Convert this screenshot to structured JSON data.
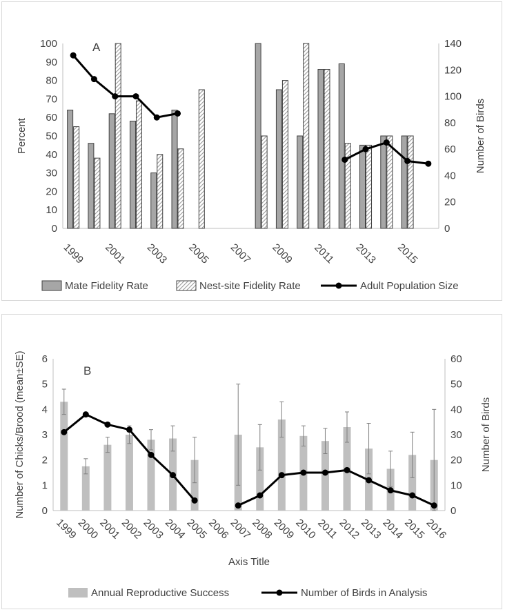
{
  "chart_data": [
    {
      "panel_label": "A",
      "type": "bar",
      "categories": [
        "1999",
        "2000",
        "2001",
        "2002",
        "2003",
        "2004",
        "2005",
        "2006",
        "2007",
        "2008",
        "2009",
        "2010",
        "2011",
        "2012",
        "2013",
        "2014",
        "2015",
        "2016"
      ],
      "x_tick_labels": [
        "1999",
        "2001",
        "2003",
        "2005",
        "2007",
        "2009",
        "2011",
        "2013",
        "2015"
      ],
      "series": [
        {
          "name": "Mate Fidelity Rate",
          "kind": "bar",
          "axis": "left",
          "color": "#a6a6a6",
          "values": [
            64,
            46,
            62,
            58,
            30,
            64,
            null,
            null,
            null,
            100,
            75,
            50,
            86,
            89,
            45,
            50,
            50,
            null
          ]
        },
        {
          "name": "Nest-site Fidelity Rate",
          "kind": "bar-hatched",
          "axis": "left",
          "color": "#bfbfbf",
          "values": [
            55,
            38,
            100,
            69,
            40,
            43,
            75,
            null,
            null,
            50,
            80,
            100,
            86,
            46,
            45,
            50,
            50,
            null
          ]
        },
        {
          "name": "Adult Population Size",
          "kind": "line",
          "axis": "right",
          "color": "#000000",
          "values": [
            131,
            113,
            100,
            100,
            84,
            87,
            null,
            null,
            null,
            null,
            null,
            null,
            null,
            52,
            60,
            65,
            51,
            49
          ]
        }
      ],
      "ylabel": "Percent",
      "y2label": "Number of Birds",
      "ylim": [
        0,
        100
      ],
      "y2lim": [
        0,
        140
      ],
      "yticks": [
        0,
        10,
        20,
        30,
        40,
        50,
        60,
        70,
        80,
        90,
        100
      ],
      "y2ticks": [
        0,
        20,
        40,
        60,
        80,
        100,
        120,
        140
      ],
      "legend": "bottom",
      "grid": false
    },
    {
      "panel_label": "B",
      "type": "bar",
      "categories": [
        "1999",
        "2000",
        "2001",
        "2002",
        "2003",
        "2004",
        "2005",
        "2006",
        "2007",
        "2008",
        "2009",
        "2010",
        "2011",
        "2012",
        "2013",
        "2014",
        "2015",
        "2016"
      ],
      "series": [
        {
          "name": "Annual Reproductive Success",
          "kind": "bar",
          "axis": "left",
          "color": "#bfbfbf",
          "values": [
            4.3,
            1.75,
            2.6,
            3.0,
            2.8,
            2.85,
            2.0,
            null,
            3.0,
            2.5,
            3.6,
            2.95,
            2.75,
            3.3,
            2.45,
            1.65,
            2.2,
            2.0
          ],
          "error": [
            0.5,
            0.3,
            0.3,
            0.35,
            0.4,
            0.5,
            0.9,
            null,
            2.0,
            0.9,
            0.7,
            0.4,
            0.5,
            0.6,
            1.0,
            0.7,
            0.9,
            2.0
          ]
        },
        {
          "name": "Number of Birds in Analysis",
          "kind": "line",
          "axis": "right",
          "color": "#000000",
          "values": [
            31,
            38,
            34,
            32,
            22,
            14,
            4,
            null,
            2,
            6,
            14,
            15,
            15,
            16,
            12,
            8,
            6,
            2
          ]
        }
      ],
      "xlabel": "Axis Title",
      "ylabel": "Number of Chicks/Brood (mean±SE)",
      "y2label": "Number of Birds",
      "ylim": [
        0,
        6
      ],
      "y2lim": [
        0,
        60
      ],
      "yticks": [
        0,
        1,
        2,
        3,
        4,
        5,
        6
      ],
      "y2ticks": [
        0,
        10,
        20,
        30,
        40,
        50,
        60
      ],
      "legend": "bottom",
      "grid": false
    }
  ]
}
